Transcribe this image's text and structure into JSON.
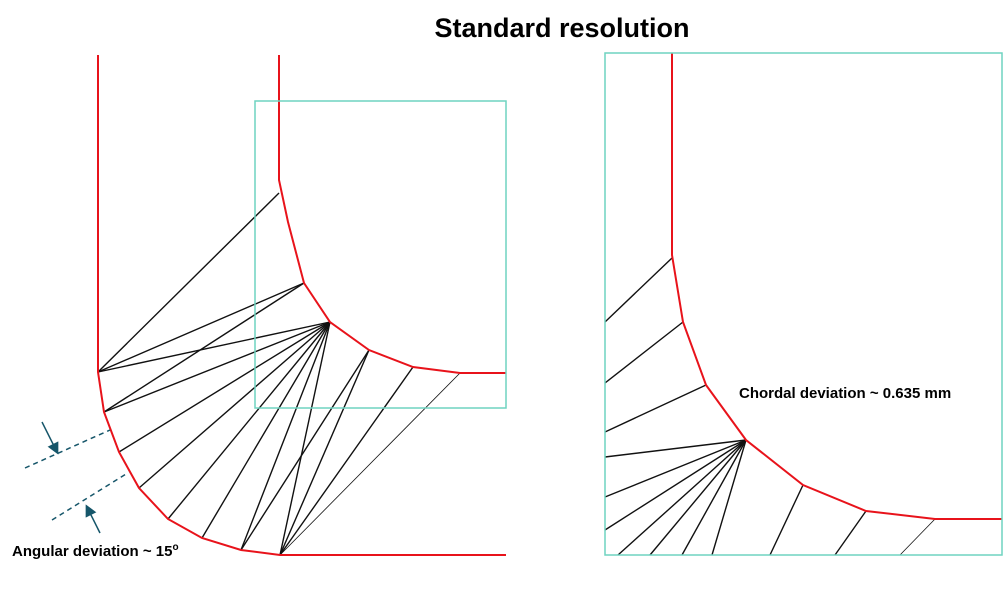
{
  "title": "Standard resolution",
  "annotations": {
    "angular": {
      "text": "Angular deviation ~ 15",
      "superscript": "o"
    },
    "chordal": {
      "text": "Chordal deviation ~ 0.635 mm"
    }
  }
}
